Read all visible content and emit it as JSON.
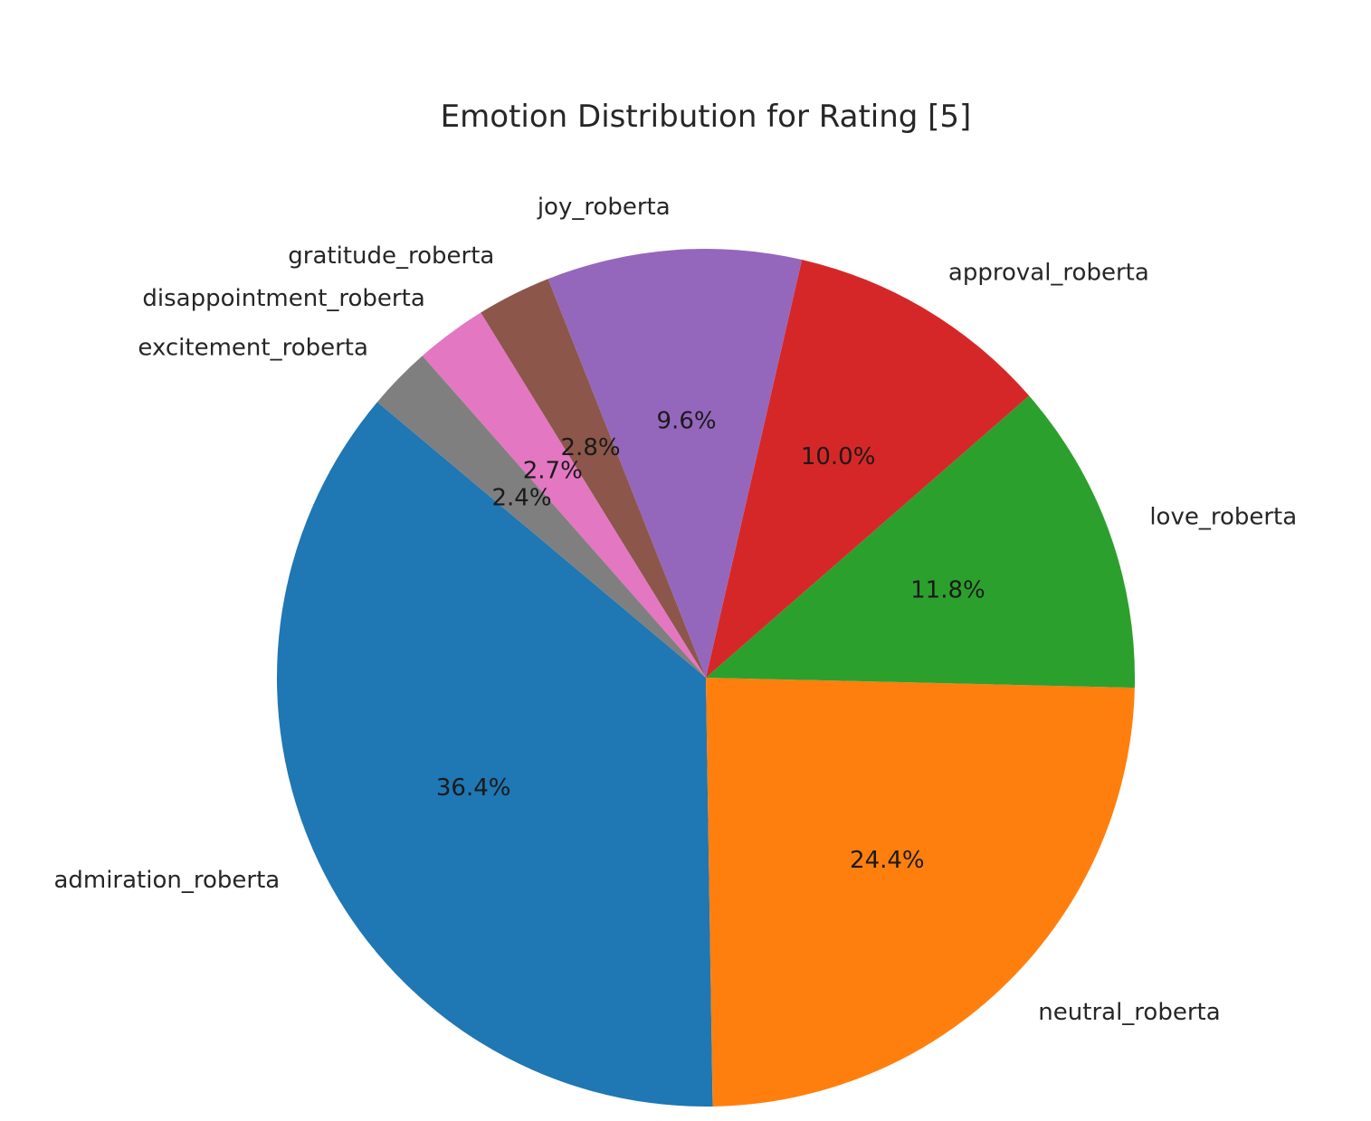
{
  "chart_data": {
    "type": "pie",
    "title": "Emotion Distribution for Rating [5]",
    "start_angle_deg": 140,
    "direction": "counterclockwise",
    "slices": [
      {
        "label": "admiration_roberta",
        "value": 36.4,
        "pct_label": "36.4%",
        "color": "#1f77b4"
      },
      {
        "label": "neutral_roberta",
        "value": 24.4,
        "pct_label": "24.4%",
        "color": "#ff7f0e"
      },
      {
        "label": "love_roberta",
        "value": 11.8,
        "pct_label": "11.8%",
        "color": "#2ca02c"
      },
      {
        "label": "approval_roberta",
        "value": 10.0,
        "pct_label": "10.0%",
        "color": "#d62728"
      },
      {
        "label": "joy_roberta",
        "value": 9.6,
        "pct_label": "9.6%",
        "color": "#9467bd"
      },
      {
        "label": "gratitude_roberta",
        "value": 2.8,
        "pct_label": "2.8%",
        "color": "#8c564b"
      },
      {
        "label": "disappointment_roberta",
        "value": 2.7,
        "pct_label": "2.7%",
        "color": "#e377c2"
      },
      {
        "label": "excitement_roberta",
        "value": 2.4,
        "pct_label": "2.4%",
        "color": "#7f7f7f"
      }
    ]
  }
}
